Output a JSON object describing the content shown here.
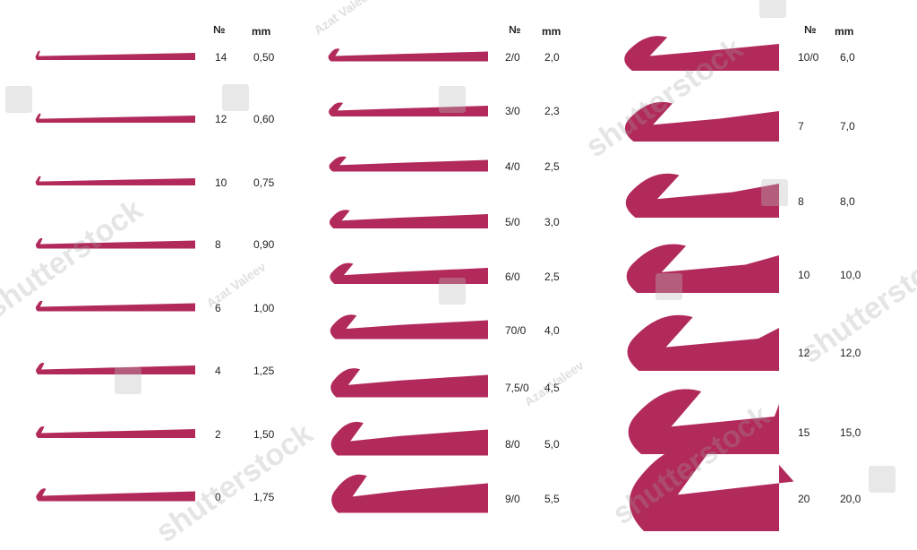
{
  "colors": {
    "hook": "#b12a5b",
    "text": "#222222"
  },
  "headers": {
    "number": "№",
    "mm": "mm"
  },
  "columns": [
    {
      "hooks": [
        {
          "number": "14",
          "mm": "0,50"
        },
        {
          "number": "12",
          "mm": "0,60"
        },
        {
          "number": "10",
          "mm": "0,75"
        },
        {
          "number": "8",
          "mm": "0,90"
        },
        {
          "number": "6",
          "mm": "1,00"
        },
        {
          "number": "4",
          "mm": "1,25"
        },
        {
          "number": "2",
          "mm": "1,50"
        },
        {
          "number": "0",
          "mm": "1,75"
        }
      ]
    },
    {
      "hooks": [
        {
          "number": "2/0",
          "mm": "2,0"
        },
        {
          "number": "3/0",
          "mm": "2,3"
        },
        {
          "number": "4/0",
          "mm": "2,5"
        },
        {
          "number": "5/0",
          "mm": "3,0"
        },
        {
          "number": "6/0",
          "mm": "2,5"
        },
        {
          "number": "70/0",
          "mm": "4,0"
        },
        {
          "number": "7,5/0",
          "mm": "4,5"
        },
        {
          "number": "8/0",
          "mm": "5,0"
        },
        {
          "number": "9/0",
          "mm": "5,5"
        }
      ]
    },
    {
      "hooks": [
        {
          "number": "10/0",
          "mm": "6,0"
        },
        {
          "number": "7",
          "mm": "7,0"
        },
        {
          "number": "8",
          "mm": "8,0"
        },
        {
          "number": "10",
          "mm": "10,0"
        },
        {
          "number": "12",
          "mm": "12,0"
        },
        {
          "number": "15",
          "mm": "15,0"
        },
        {
          "number": "20",
          "mm": "20,0"
        }
      ]
    }
  ],
  "watermarks": {
    "brand": "shutterstock",
    "author": "Azat Valeev"
  }
}
